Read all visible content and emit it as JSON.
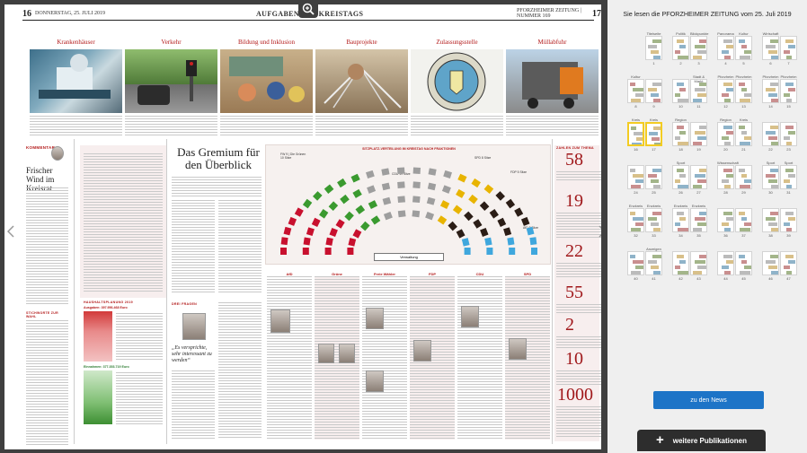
{
  "header": {
    "left_page_number": "16",
    "left_folio": "DONNERSTAG, 25. JULI 2019",
    "center_title": "AUFGABEN DES KREISTAGS",
    "right_folio": "PFORZHEIMER ZEITUNG | NUMMER 169",
    "right_page_number": "17"
  },
  "photos": [
    {
      "title": "Krankenhäuser"
    },
    {
      "title": "Verkehr"
    },
    {
      "title": "Bildung und Inklusion"
    },
    {
      "title": "Bauprojekte"
    },
    {
      "title": "Zulassungsstelle"
    },
    {
      "title": "Müllabfuhr"
    }
  ],
  "kommentar": {
    "label": "KOMMENTAR",
    "headline": "Frischer Wind im Kreisrat"
  },
  "gremium": {
    "headline": "Das Gremium für den Überblick",
    "infobox": "SITZPLATZ-VERTEILUNG IM KREISTAG NACH FRAKTIONEN",
    "seat_labels": [
      "FW 9 | Die Grünen 10 Sitze",
      "CDU 19 Sitze",
      "SPD 8 Sitze",
      "FDP 5 Sitze",
      "AfD 8 Sitze"
    ],
    "footer": "Verwaltung"
  },
  "zahlen": {
    "label": "ZAHLEN ZUM THEMA",
    "numbers": [
      "58",
      "19",
      "22",
      "55",
      "2",
      "10",
      "1000"
    ]
  },
  "haushalt": {
    "label": "HAUSHALTSPLANUNG 2019",
    "einnahmen": "Ausgaben: 397.956.468 Euro",
    "ausgaben": "Einnahmen: 377.353.719 Euro"
  },
  "zitat": {
    "label": "DREI FRAGEN",
    "quote": "„Es versprichte, sehr interessant zu werden“"
  },
  "parties": [
    "AfD",
    "Grüne",
    "Freie Wähler",
    "FDP",
    "CDU",
    "SPD"
  ],
  "sidebar": {
    "title": "Sie lesen die PFORZHEIMER ZEITUNG vom 25. Juli 2019",
    "news_button": "zu den News",
    "publications_button": "weitere Publikationen",
    "thumb_labels": [
      "Titelseite",
      "Politik",
      "Blickpunkte",
      "Panorama",
      "Kultur",
      "Wirtschaft",
      "",
      "Kultur",
      "",
      "",
      "Stadt & Markt",
      "Pforzheim",
      "Pforzheim",
      "Pforzheim",
      "Pforzheim",
      "Kreis",
      "Kreis",
      "Region",
      "",
      "Region",
      "Kreis",
      "",
      "",
      "",
      "",
      "Sport",
      "",
      "Wissenschaft",
      "",
      "Sport",
      "Sport",
      "Enzkreis",
      "Enzkreis",
      "Enzkreis",
      "Enzkreis",
      "",
      "",
      "",
      "",
      "",
      "Anzeigen",
      "",
      "",
      "",
      "",
      "",
      ""
    ],
    "thumb_numbers": [
      "1",
      "2",
      "3",
      "4",
      "5",
      "6",
      "7",
      "8",
      "9",
      "10",
      "11",
      "12",
      "13",
      "14",
      "15",
      "16",
      "17",
      "18",
      "19",
      "20",
      "21",
      "22",
      "23",
      "24",
      "25",
      "26",
      "27",
      "28",
      "29",
      "30",
      "31",
      "32",
      "33",
      "34",
      "35",
      "36",
      "37",
      "38",
      "39",
      "40",
      "41",
      "42",
      "43",
      "44",
      "45",
      "46",
      "47"
    ]
  }
}
